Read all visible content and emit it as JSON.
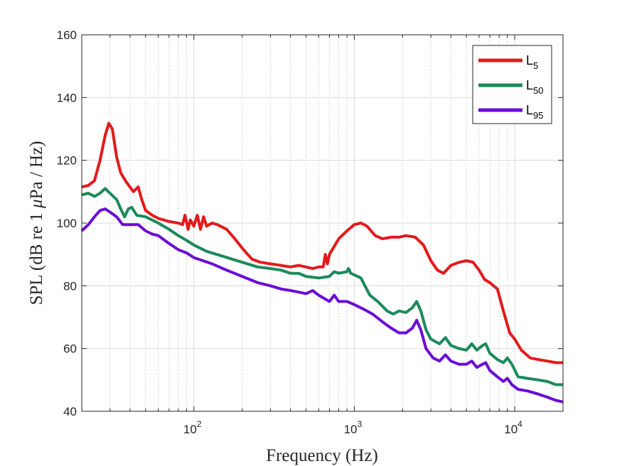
{
  "chart_data": {
    "type": "line",
    "title": "",
    "xlabel": "Frequency (Hz)",
    "ylabel_parts": {
      "pre": "SPL (dB re 1 ",
      "mu": "μ",
      "post": "Pa / Hz)"
    },
    "ylabel": "SPL (dB re 1 μPa / Hz)",
    "xscale": "log",
    "xlim": [
      20,
      20000
    ],
    "ylim": [
      40,
      160
    ],
    "grid": true,
    "minor_grid_x": true,
    "yticks": [
      40,
      60,
      80,
      100,
      120,
      140,
      160
    ],
    "ytick_labels": [
      "40",
      "60",
      "80",
      "100",
      "120",
      "140",
      "160"
    ],
    "xticks": [
      100,
      1000,
      10000
    ],
    "xtick_labels": [
      {
        "base": "10",
        "exp": "2"
      },
      {
        "base": "10",
        "exp": "3"
      },
      {
        "base": "10",
        "exp": "4"
      }
    ],
    "legend_position": "top-right",
    "series": [
      {
        "name": "L5",
        "label_main": "L",
        "label_sub": "5",
        "color": "#e31a1c",
        "points": [
          [
            20,
            111.5
          ],
          [
            22,
            112
          ],
          [
            24,
            113.5
          ],
          [
            26,
            120
          ],
          [
            28,
            128
          ],
          [
            29.5,
            131.8
          ],
          [
            31,
            130
          ],
          [
            33,
            121
          ],
          [
            35,
            116
          ],
          [
            38,
            113
          ],
          [
            42,
            110
          ],
          [
            45,
            111.5
          ],
          [
            47,
            108
          ],
          [
            50,
            104
          ],
          [
            55,
            102.5
          ],
          [
            60,
            101.5
          ],
          [
            70,
            100.5
          ],
          [
            80,
            100
          ],
          [
            85,
            99.5
          ],
          [
            88,
            102.5
          ],
          [
            92,
            98
          ],
          [
            95,
            101
          ],
          [
            100,
            99
          ],
          [
            105,
            102.5
          ],
          [
            110,
            98
          ],
          [
            115,
            102
          ],
          [
            120,
            99
          ],
          [
            130,
            100
          ],
          [
            140,
            99.5
          ],
          [
            160,
            98
          ],
          [
            180,
            95
          ],
          [
            200,
            92
          ],
          [
            230,
            88.5
          ],
          [
            260,
            87.5
          ],
          [
            300,
            87
          ],
          [
            350,
            86.5
          ],
          [
            400,
            86
          ],
          [
            450,
            86.5
          ],
          [
            500,
            86
          ],
          [
            550,
            85.5
          ],
          [
            600,
            86
          ],
          [
            640,
            86
          ],
          [
            660,
            90
          ],
          [
            680,
            87
          ],
          [
            700,
            90
          ],
          [
            800,
            95
          ],
          [
            900,
            97.5
          ],
          [
            1000,
            99.5
          ],
          [
            1100,
            100
          ],
          [
            1200,
            99
          ],
          [
            1350,
            96
          ],
          [
            1500,
            95
          ],
          [
            1700,
            95.5
          ],
          [
            1900,
            95.5
          ],
          [
            2100,
            96
          ],
          [
            2400,
            95.5
          ],
          [
            2700,
            93
          ],
          [
            3000,
            88
          ],
          [
            3300,
            85
          ],
          [
            3600,
            84
          ],
          [
            4000,
            86.5
          ],
          [
            4500,
            87.5
          ],
          [
            5000,
            88
          ],
          [
            5500,
            87.5
          ],
          [
            6000,
            85
          ],
          [
            6500,
            82
          ],
          [
            7000,
            81
          ],
          [
            7800,
            79
          ],
          [
            8500,
            72
          ],
          [
            9300,
            65
          ],
          [
            10000,
            63
          ],
          [
            11000,
            59.5
          ],
          [
            12500,
            57
          ],
          [
            14000,
            56.5
          ],
          [
            16000,
            56
          ],
          [
            18000,
            55.5
          ],
          [
            20000,
            55.5
          ]
        ]
      },
      {
        "name": "L50",
        "label_main": "L",
        "label_sub": "50",
        "color": "#1b8a5a",
        "points": [
          [
            20,
            109
          ],
          [
            22,
            109.5
          ],
          [
            24,
            108.5
          ],
          [
            26,
            109.5
          ],
          [
            28,
            111
          ],
          [
            30,
            109.5
          ],
          [
            33,
            107.5
          ],
          [
            35,
            104.5
          ],
          [
            37,
            102
          ],
          [
            39,
            104.5
          ],
          [
            41,
            105
          ],
          [
            44,
            102.5
          ],
          [
            50,
            102
          ],
          [
            60,
            100
          ],
          [
            70,
            98
          ],
          [
            80,
            96
          ],
          [
            90,
            94.5
          ],
          [
            100,
            93
          ],
          [
            120,
            91
          ],
          [
            150,
            89.5
          ],
          [
            200,
            87.5
          ],
          [
            250,
            86
          ],
          [
            300,
            85.5
          ],
          [
            350,
            85
          ],
          [
            400,
            84
          ],
          [
            450,
            84
          ],
          [
            500,
            83
          ],
          [
            600,
            82.5
          ],
          [
            700,
            83
          ],
          [
            750,
            84.5
          ],
          [
            800,
            84
          ],
          [
            900,
            84.5
          ],
          [
            920,
            85.5
          ],
          [
            950,
            84
          ],
          [
            1000,
            83.5
          ],
          [
            1100,
            82.5
          ],
          [
            1250,
            77
          ],
          [
            1400,
            75
          ],
          [
            1600,
            72
          ],
          [
            1750,
            71
          ],
          [
            1900,
            72
          ],
          [
            2100,
            71.5
          ],
          [
            2300,
            73
          ],
          [
            2450,
            75
          ],
          [
            2600,
            72
          ],
          [
            2800,
            66
          ],
          [
            3000,
            63
          ],
          [
            3400,
            61.5
          ],
          [
            3700,
            63.5
          ],
          [
            4000,
            61
          ],
          [
            4500,
            60
          ],
          [
            5000,
            59.5
          ],
          [
            5400,
            61.5
          ],
          [
            5800,
            59.5
          ],
          [
            6300,
            61
          ],
          [
            6600,
            61.5
          ],
          [
            7000,
            58.5
          ],
          [
            7800,
            56.5
          ],
          [
            8500,
            55.5
          ],
          [
            9000,
            57
          ],
          [
            9600,
            55
          ],
          [
            10500,
            51
          ],
          [
            12000,
            50.5
          ],
          [
            14000,
            50
          ],
          [
            16000,
            49.5
          ],
          [
            18000,
            48.5
          ],
          [
            20000,
            48.5
          ]
        ]
      },
      {
        "name": "L95",
        "label_main": "L",
        "label_sub": "95",
        "color": "#6a0dd6",
        "points": [
          [
            20,
            97.5
          ],
          [
            22,
            99.5
          ],
          [
            24,
            102
          ],
          [
            26,
            104
          ],
          [
            28,
            104.5
          ],
          [
            30,
            103.5
          ],
          [
            33,
            102
          ],
          [
            36,
            99.5
          ],
          [
            40,
            99.5
          ],
          [
            45,
            99.5
          ],
          [
            50,
            97.5
          ],
          [
            55,
            96.5
          ],
          [
            60,
            96
          ],
          [
            70,
            93.5
          ],
          [
            80,
            91.5
          ],
          [
            90,
            90.5
          ],
          [
            100,
            89
          ],
          [
            130,
            87
          ],
          [
            160,
            85
          ],
          [
            200,
            83
          ],
          [
            250,
            81
          ],
          [
            300,
            80
          ],
          [
            350,
            79
          ],
          [
            400,
            78.5
          ],
          [
            450,
            78
          ],
          [
            500,
            77.5
          ],
          [
            550,
            78.5
          ],
          [
            600,
            77
          ],
          [
            700,
            75
          ],
          [
            750,
            77
          ],
          [
            800,
            75
          ],
          [
            900,
            75
          ],
          [
            950,
            74.5
          ],
          [
            1000,
            74
          ],
          [
            1150,
            72.5
          ],
          [
            1300,
            71
          ],
          [
            1500,
            68.5
          ],
          [
            1700,
            66.5
          ],
          [
            1900,
            65
          ],
          [
            2100,
            65
          ],
          [
            2300,
            66.5
          ],
          [
            2450,
            69
          ],
          [
            2600,
            66
          ],
          [
            2800,
            60
          ],
          [
            3100,
            57
          ],
          [
            3400,
            56
          ],
          [
            3700,
            58
          ],
          [
            4000,
            56
          ],
          [
            4500,
            55
          ],
          [
            5000,
            55
          ],
          [
            5400,
            56
          ],
          [
            5800,
            54
          ],
          [
            6300,
            55
          ],
          [
            6600,
            55.5
          ],
          [
            7000,
            53
          ],
          [
            7800,
            51
          ],
          [
            8500,
            49.5
          ],
          [
            9000,
            50.5
          ],
          [
            9600,
            48.5
          ],
          [
            10500,
            47
          ],
          [
            12000,
            46.5
          ],
          [
            14000,
            45.5
          ],
          [
            16000,
            44.5
          ],
          [
            18000,
            43.5
          ],
          [
            20000,
            43
          ]
        ]
      }
    ]
  }
}
